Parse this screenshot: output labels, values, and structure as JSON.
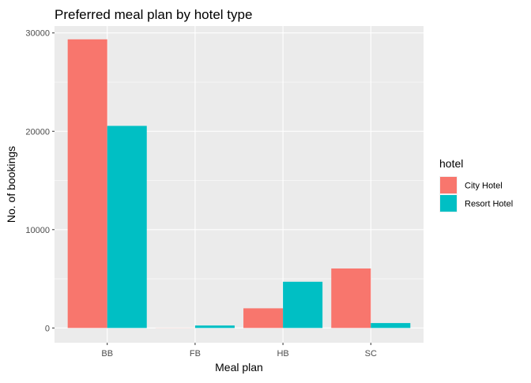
{
  "chart_data": {
    "type": "bar",
    "title": "Preferred meal plan by hotel type",
    "xlabel": "Meal plan",
    "ylabel": "No. of bookings",
    "categories": [
      "BB",
      "FB",
      "HB",
      "SC"
    ],
    "series": [
      {
        "name": "City Hotel",
        "color": "#F8766D",
        "values": [
          29350,
          10,
          2000,
          6050
        ]
      },
      {
        "name": "Resort Hotel",
        "color": "#00BFC4",
        "values": [
          20550,
          250,
          4700,
          500
        ]
      }
    ],
    "ylim": [
      -1500,
      30700
    ],
    "yticks": [
      0,
      10000,
      20000,
      30000
    ],
    "ytick_labels": [
      "0",
      "10000",
      "20000",
      "30000"
    ],
    "grid": true,
    "legend": {
      "title": "hotel",
      "placement": "right"
    },
    "colors": {
      "panel_background": "#EBEBEB",
      "grid_major": "#FFFFFF",
      "axis_text": "#4D4D4D",
      "title_text": "#000000"
    }
  }
}
